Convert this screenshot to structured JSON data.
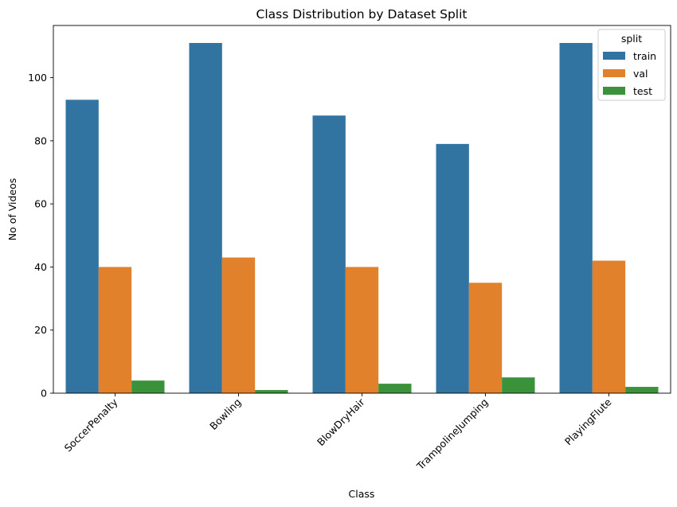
{
  "chart_data": {
    "type": "bar",
    "title": "Class Distribution by Dataset Split",
    "xlabel": "Class",
    "ylabel": "No of Videos",
    "categories": [
      "SoccerPenalty",
      "Bowling",
      "BlowDryHair",
      "TrampolineJumping",
      "PlayingFlute"
    ],
    "series": [
      {
        "name": "train",
        "color": "#3274a1",
        "values": [
          93,
          111,
          88,
          79,
          111
        ]
      },
      {
        "name": "val",
        "color": "#e1812c",
        "values": [
          40,
          43,
          40,
          35,
          42
        ]
      },
      {
        "name": "test",
        "color": "#3a923a",
        "values": [
          4,
          1,
          3,
          5,
          2
        ]
      }
    ],
    "ylim": [
      0,
      116.55
    ],
    "yticks": [
      0,
      20,
      40,
      60,
      80,
      100
    ],
    "xtick_rotation_deg": -45,
    "grid": false,
    "legend": {
      "title": "split",
      "placement": "top-right"
    }
  }
}
